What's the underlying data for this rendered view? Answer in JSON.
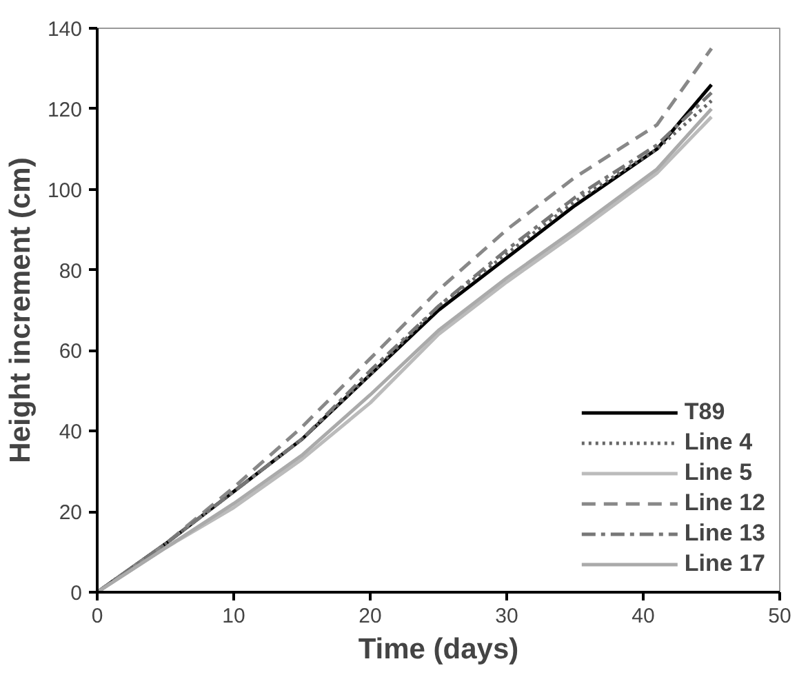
{
  "chart_data": {
    "type": "line",
    "xlabel": "Time (days)",
    "ylabel": "Height increment (cm)",
    "x": [
      0,
      5,
      10,
      15,
      20,
      25,
      30,
      35,
      41,
      45
    ],
    "series": [
      {
        "name": "T89",
        "color": "#000000",
        "line_style": "solid",
        "values": [
          0,
          12,
          25,
          38,
          54,
          70,
          83,
          96,
          110,
          126
        ]
      },
      {
        "name": "Line 4",
        "color": "#666666",
        "line_style": "dotted",
        "values": [
          0,
          12,
          25,
          38,
          54,
          71,
          84,
          97,
          110,
          122
        ]
      },
      {
        "name": "Line 5",
        "color": "#bbbbbb",
        "line_style": "solid",
        "values": [
          0,
          11,
          21,
          33,
          47,
          64,
          77,
          89,
          104,
          118
        ]
      },
      {
        "name": "Line 12",
        "color": "#888888",
        "line_style": "dashed",
        "values": [
          0,
          12,
          26,
          41,
          58,
          75,
          90,
          103,
          116,
          135
        ]
      },
      {
        "name": "Line 13",
        "color": "#777777",
        "line_style": "dashdot",
        "values": [
          0,
          12,
          25,
          38,
          55,
          71,
          85,
          98,
          111,
          124
        ]
      },
      {
        "name": "Line 17",
        "color": "#aaaaaa",
        "line_style": "solid",
        "values": [
          0,
          11,
          22,
          34,
          49,
          65,
          78,
          90,
          105,
          120
        ]
      }
    ],
    "xlim": [
      0,
      50
    ],
    "xticks": [
      0,
      10,
      20,
      30,
      40,
      50
    ],
    "ylim": [
      0,
      140
    ],
    "yticks": [
      0,
      20,
      40,
      60,
      80,
      100,
      120,
      140
    ],
    "grid": false,
    "legend": "bottom right"
  }
}
